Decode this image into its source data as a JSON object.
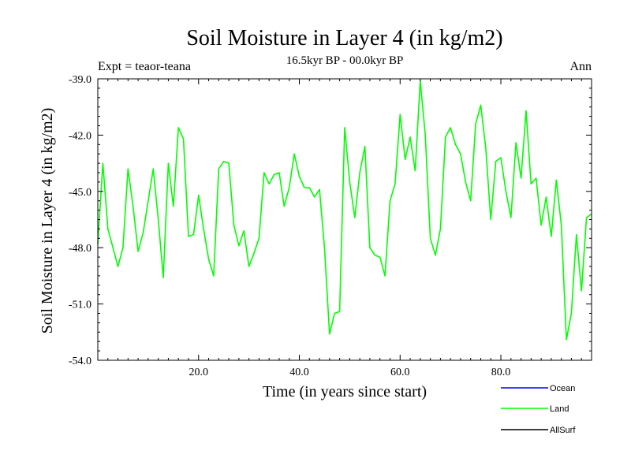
{
  "chart_data": {
    "type": "line",
    "title": "Soil Moisture in Layer 4 (in kg/m2)",
    "subtitle": "16.5kyr BP - 00.0kyr BP",
    "left_label": "Expt = teaor-teana",
    "right_label": "Ann",
    "xlabel": "Time (in years since start)",
    "ylabel": "Soil Moisture in Layer 4 (in kg/m2)",
    "xlim": [
      0,
      98
    ],
    "ylim": [
      -54,
      -39
    ],
    "xticks": [
      20,
      40,
      60,
      80
    ],
    "xtick_labels": [
      "20.0",
      "40.0",
      "60.0",
      "80.0"
    ],
    "yticks": [
      -39,
      -42,
      -45,
      -48,
      -51,
      -54
    ],
    "ytick_labels": [
      "-39.0",
      "-42.0",
      "-45.0",
      "-48.0",
      "-51.0",
      "-54.0"
    ],
    "legend": [
      {
        "name": "Ocean",
        "color": "#0000ff"
      },
      {
        "name": "Land",
        "color": "#00ff00"
      },
      {
        "name": "AllSurf",
        "color": "#000000"
      }
    ],
    "series": [
      {
        "name": "Land",
        "color": "#00ff00",
        "x": [
          0,
          1,
          2,
          3,
          4,
          5,
          6,
          7,
          8,
          9,
          10,
          11,
          12,
          13,
          14,
          15,
          16,
          17,
          18,
          19,
          20,
          21,
          22,
          23,
          24,
          25,
          26,
          27,
          28,
          29,
          30,
          31,
          32,
          33,
          34,
          35,
          36,
          37,
          38,
          39,
          40,
          41,
          42,
          43,
          44,
          45,
          46,
          47,
          48,
          49,
          50,
          51,
          52,
          53,
          54,
          55,
          56,
          57,
          58,
          59,
          60,
          61,
          62,
          63,
          64,
          65,
          66,
          67,
          68,
          69,
          70,
          71,
          72,
          73,
          74,
          75,
          76,
          77,
          78,
          79,
          80,
          81,
          82,
          83,
          84,
          85,
          86,
          87,
          88,
          89,
          90,
          91,
          92,
          93,
          94,
          95,
          96,
          97,
          98
        ],
        "values": [
          -47.8,
          -43.5,
          -47.0,
          -48.0,
          -49.0,
          -48.0,
          -43.8,
          -45.8,
          -48.2,
          -47.2,
          -45.5,
          -43.8,
          -46.5,
          -49.6,
          -43.5,
          -45.8,
          -41.6,
          -42.2,
          -47.4,
          -47.3,
          -45.2,
          -47.0,
          -48.6,
          -49.5,
          -43.8,
          -43.4,
          -43.5,
          -46.8,
          -47.9,
          -47.1,
          -49.0,
          -48.3,
          -47.5,
          -44.0,
          -44.6,
          -44.1,
          -44.0,
          -45.8,
          -44.8,
          -43.0,
          -44.2,
          -44.8,
          -44.8,
          -45.3,
          -44.9,
          -48.0,
          -52.6,
          -51.5,
          -51.4,
          -41.6,
          -44.5,
          -46.4,
          -44.0,
          -42.6,
          -48.0,
          -48.4,
          -48.5,
          -49.5,
          -45.5,
          -44.6,
          -40.9,
          -43.3,
          -42.1,
          -43.9,
          -39.1,
          -42.0,
          -47.5,
          -48.4,
          -47.0,
          -42.1,
          -41.6,
          -42.5,
          -43.0,
          -44.5,
          -45.5,
          -41.4,
          -40.4,
          -42.7,
          -46.5,
          -43.4,
          -43.2,
          -45.0,
          -46.4,
          -42.4,
          -44.3,
          -40.7,
          -44.6,
          -44.3,
          -46.8,
          -45.3,
          -47.4,
          -44.4,
          -46.8,
          -52.9,
          -51.5,
          -47.3,
          -50.3,
          -46.4,
          -46.2
        ]
      }
    ]
  }
}
